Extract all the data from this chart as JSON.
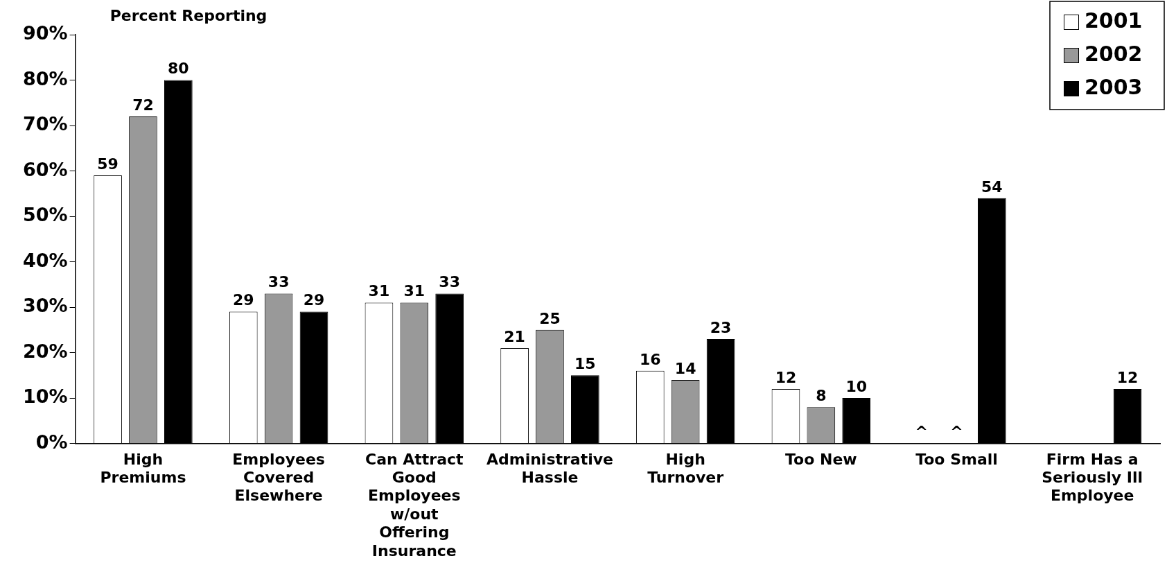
{
  "chart_data": {
    "type": "bar",
    "ylabel": "Percent Reporting",
    "categories": [
      "High\nPremiums",
      "Employees\nCovered\nElsewhere",
      "Can Attract\nGood\nEmployees\nw/out\nOffering\nInsurance",
      "Administrative\nHassle",
      "High\nTurnover",
      "Too New",
      "Too Small",
      "Firm Has a\nSeriously Ill\nEmployee"
    ],
    "series": [
      {
        "name": "2001",
        "color": "#ffffff",
        "values": [
          59,
          29,
          31,
          21,
          16,
          12,
          null,
          null
        ],
        "value_labels": [
          "59",
          "29",
          "31",
          "21",
          "16",
          "12",
          "^",
          null
        ]
      },
      {
        "name": "2002",
        "color": "#999999",
        "values": [
          72,
          33,
          31,
          25,
          14,
          8,
          null,
          null
        ],
        "value_labels": [
          "72",
          "33",
          "31",
          "25",
          "14",
          "8",
          "^",
          null
        ]
      },
      {
        "name": "2003",
        "color": "#000000",
        "values": [
          80,
          29,
          33,
          15,
          23,
          10,
          54,
          12
        ],
        "value_labels": [
          "80",
          "29",
          "33",
          "15",
          "23",
          "10",
          "54",
          "12"
        ]
      }
    ],
    "ylim": [
      0,
      90
    ],
    "yticks": [
      {
        "value": 0,
        "label": "0%"
      },
      {
        "value": 10,
        "label": "10%"
      },
      {
        "value": 20,
        "label": "20%"
      },
      {
        "value": 30,
        "label": "30%"
      },
      {
        "value": 40,
        "label": "40%"
      },
      {
        "value": 50,
        "label": "50%"
      },
      {
        "value": 60,
        "label": "60%"
      },
      {
        "value": 70,
        "label": "70%"
      },
      {
        "value": 80,
        "label": "80%"
      },
      {
        "value": 90,
        "label": "90%"
      }
    ],
    "grid": false,
    "legend": "top right"
  }
}
